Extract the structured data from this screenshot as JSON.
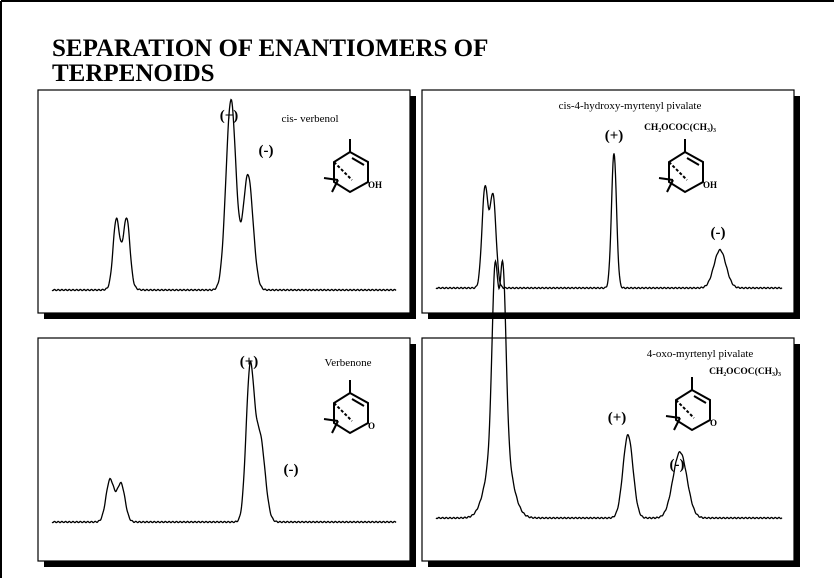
{
  "title_lines": [
    "SEPARATION OF ENANTIOMERS OF",
    "TERPENOIDS"
  ],
  "panels": [
    {
      "name": "cis- verbenol",
      "peaks": [
        "(+)",
        "(-)"
      ],
      "substituent": "OH"
    },
    {
      "name": "cis-4-hydroxy-myrtenyl pivalate",
      "side_chain": "CH₂OCOC(CH₃)₃",
      "peaks": [
        "(+)",
        "(-)"
      ],
      "substituent": "OH"
    },
    {
      "name": "Verbenone",
      "peaks": [
        "(+)",
        "(-)"
      ],
      "substituent": "O"
    },
    {
      "name": "4-oxo-myrtenyl pivalate",
      "side_chain": "CH₂OCOC(CH₃)₃",
      "peaks": [
        "(+)",
        "(-)"
      ],
      "substituent": "O"
    }
  ]
}
